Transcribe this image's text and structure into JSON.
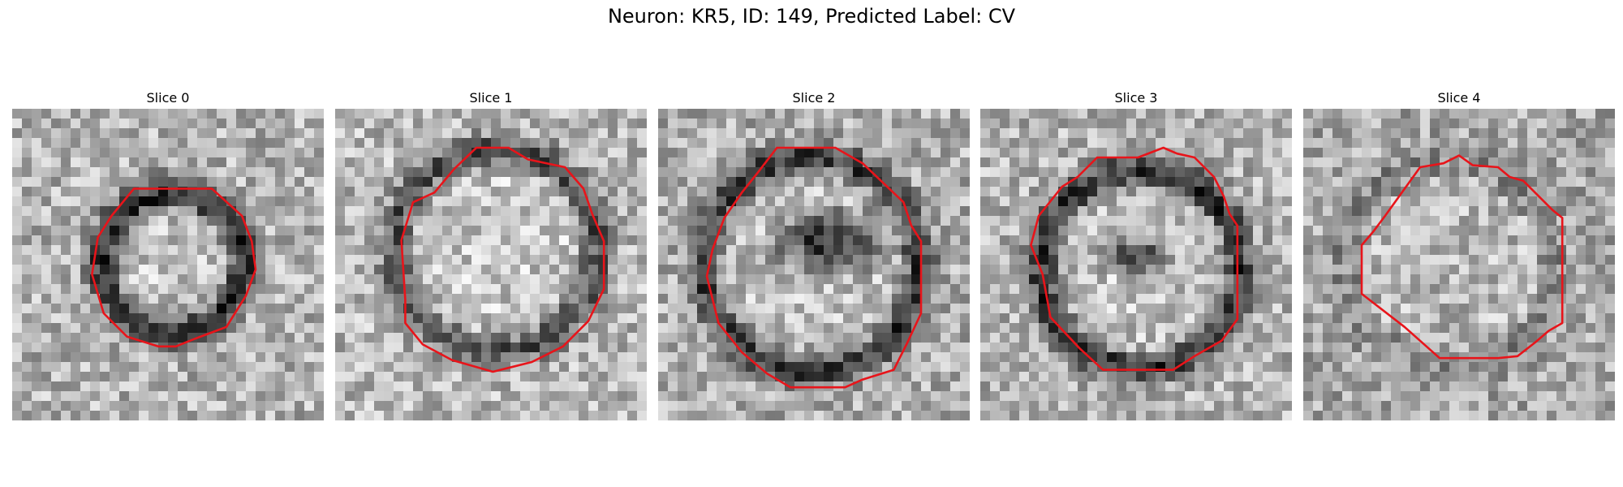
{
  "figure": {
    "title": "Neuron: KR5, ID: 149, Predicted Label: CV"
  },
  "colors": {
    "contour": "#e8141a",
    "background": "#ffffff"
  },
  "slices": [
    {
      "title": "Slice 0"
    },
    {
      "title": "Slice 1"
    },
    {
      "title": "Slice 2"
    },
    {
      "title": "Slice 3"
    },
    {
      "title": "Slice 4"
    }
  ]
}
